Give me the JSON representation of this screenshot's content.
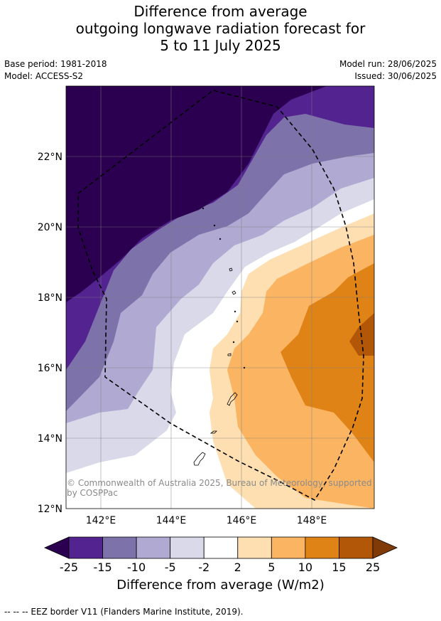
{
  "title": {
    "line1": "Difference from average",
    "line2": "outgoing longwave radiation forecast for",
    "line3": "5 to 11 July 2025"
  },
  "meta": {
    "base_period": "Base period: 1981-2018",
    "model": "Model: ACCESS-S2",
    "model_run": "Model run: 28/06/2025",
    "issued": "Issued: 30/06/2025"
  },
  "map": {
    "lon_ticks": [
      "142°E",
      "144°E",
      "146°E",
      "148°E"
    ],
    "lat_ticks": [
      "22°N",
      "20°N",
      "18°N",
      "16°N",
      "14°N",
      "12°N"
    ],
    "credit": "© Commonwealth of Australia 2025, Bureau of Meteorology, supported by COSPPac"
  },
  "colorbar": {
    "ticks": [
      "-25",
      "-15",
      "-10",
      "-5",
      "-2",
      "2",
      "5",
      "10",
      "15",
      "25"
    ],
    "colors": [
      "#2c0050",
      "#532390",
      "#7e72ab",
      "#b0aad2",
      "#d9d9ea",
      "#ffffff",
      "#fddfb2",
      "#fbb562",
      "#e08317",
      "#b25607",
      "#7f3a08"
    ],
    "label": "Difference from average (W/m2)"
  },
  "footnote": "--  --  -- EEZ border V11 (Flanders Marine Institute, 2019)."
}
